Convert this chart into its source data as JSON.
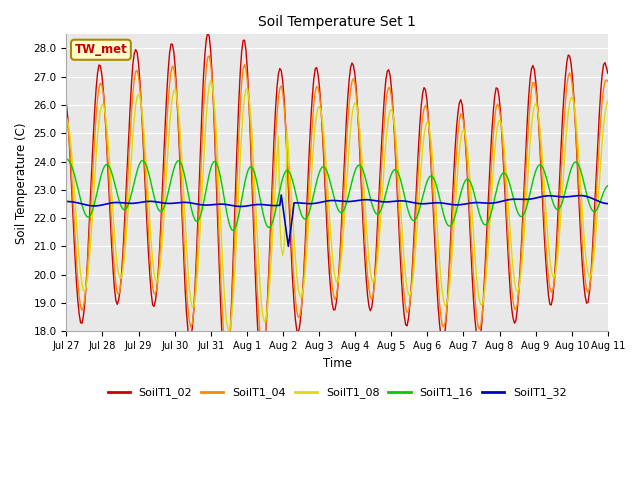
{
  "title": "Soil Temperature Set 1",
  "xlabel": "Time",
  "ylabel": "Soil Temperature (C)",
  "ylim": [
    18.0,
    28.5
  ],
  "yticks": [
    18.0,
    19.0,
    20.0,
    21.0,
    22.0,
    23.0,
    24.0,
    25.0,
    26.0,
    27.0,
    28.0
  ],
  "bg_color": "#e8e8e8",
  "plot_bg_color": "#e8e8e8",
  "series_colors": {
    "SoilT1_02": "#cc0000",
    "SoilT1_04": "#ff8800",
    "SoilT1_08": "#dddd00",
    "SoilT1_16": "#00cc00",
    "SoilT1_32": "#0000cc"
  },
  "legend_label": "TW_met",
  "legend_box_color": "#ffffcc",
  "legend_box_edge": "#aa8800",
  "x_tick_labels": [
    "Jul 27",
    "Jul 28",
    "Jul 29",
    "Jul 30",
    "Jul 31",
    "Aug 1",
    "Aug 2",
    "Aug 3",
    "Aug 4",
    "Aug 5",
    "Aug 6",
    "Aug 7",
    "Aug 8",
    "Aug 9",
    "Aug 10",
    "Aug 11"
  ],
  "figsize": [
    6.4,
    4.8
  ],
  "dpi": 100
}
